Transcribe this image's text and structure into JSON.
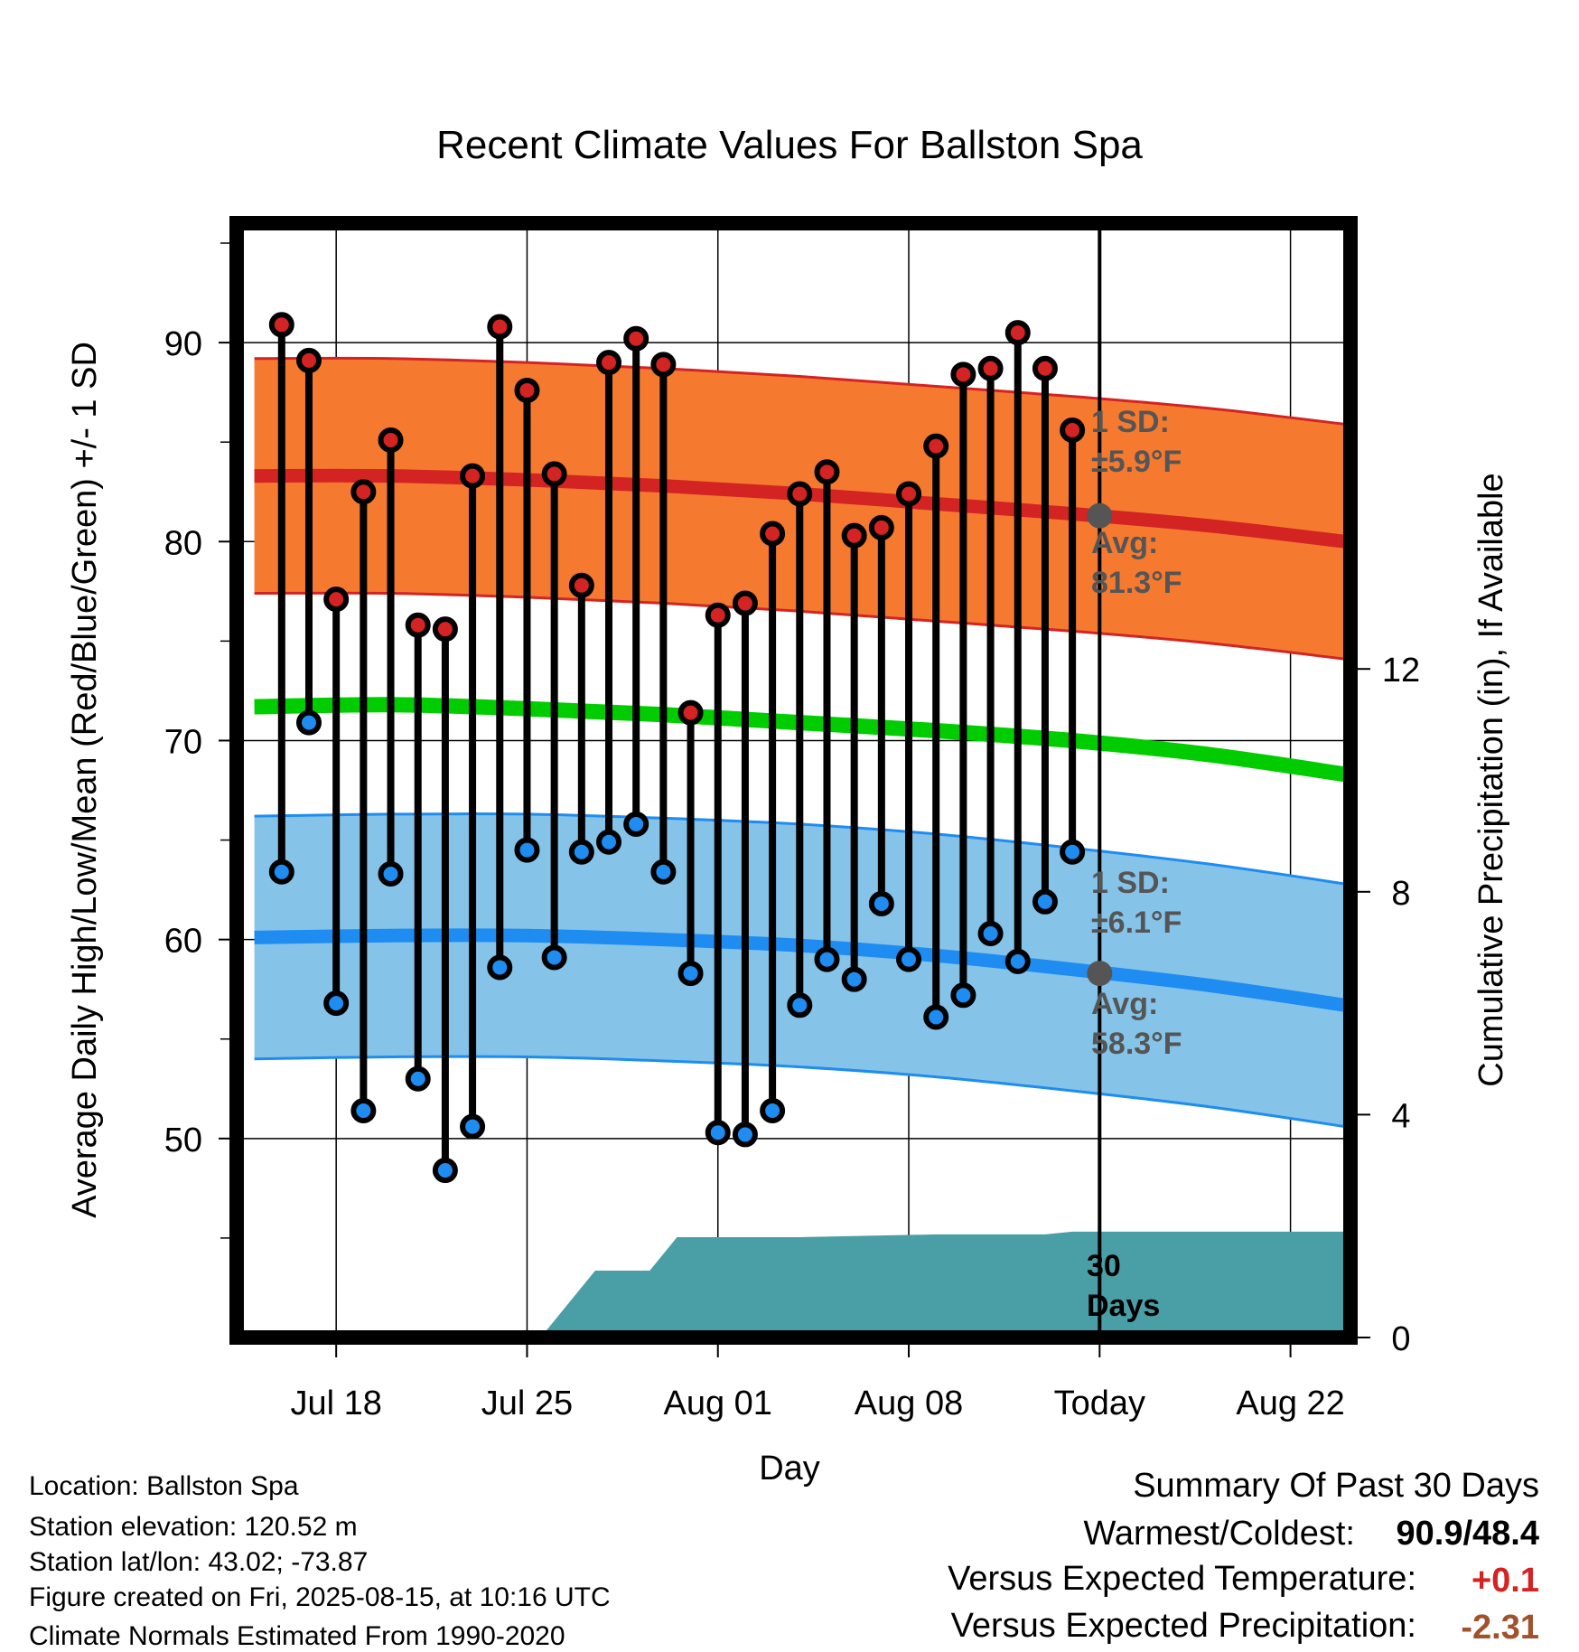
{
  "chart_data": {
    "type": "line",
    "title": "Recent Climate Values For Ballston Spa",
    "xlabel": "Day",
    "ylabel": "Average Daily High/Low/Mean (Red/Blue/Green) +/- 1 SD",
    "y2label": "Cumulative Precipitation (in), If Available",
    "ylim": [
      40,
      96
    ],
    "y2lim": [
      0,
      20
    ],
    "xlim": [
      -0.65,
      40.2
    ],
    "grid": true,
    "y_ticks": [
      "50",
      "60",
      "70",
      "80",
      "90"
    ],
    "y2_ticks": [
      "0",
      "4",
      "8",
      "12"
    ],
    "x_ticks": [
      {
        "day": 3,
        "label": "Jul 18"
      },
      {
        "day": 10,
        "label": "Jul 25"
      },
      {
        "day": 17,
        "label": "Aug 01"
      },
      {
        "day": 24,
        "label": "Aug 08"
      },
      {
        "day": 31,
        "label": "Today"
      },
      {
        "day": 38,
        "label": "Aug 22"
      }
    ],
    "days": [
      1,
      2,
      3,
      4,
      5,
      6,
      7,
      8,
      9,
      10,
      11,
      12,
      13,
      14,
      15,
      16,
      17,
      18,
      19,
      20,
      21,
      22,
      23,
      24,
      25,
      26,
      27,
      28,
      29,
      30
    ],
    "series": [
      {
        "name": "High",
        "values": [
          90.9,
          89.1,
          77.1,
          82.5,
          85.1,
          75.8,
          75.6,
          83.3,
          90.8,
          87.6,
          83.4,
          77.8,
          89.0,
          90.2,
          88.9,
          71.4,
          76.3,
          76.9,
          80.4,
          82.4,
          83.5,
          80.3,
          80.7,
          82.4,
          84.8,
          88.4,
          88.7,
          90.5,
          88.7,
          85.6
        ]
      },
      {
        "name": "Low",
        "values": [
          63.4,
          70.9,
          56.8,
          51.4,
          63.3,
          53.0,
          48.4,
          50.6,
          58.6,
          64.5,
          59.1,
          64.4,
          64.9,
          65.8,
          63.4,
          58.3,
          50.3,
          50.2,
          51.4,
          56.7,
          59.0,
          58.0,
          61.8,
          59.0,
          56.1,
          57.2,
          60.3,
          58.9,
          61.9,
          64.4
        ]
      }
    ],
    "normals": {
      "days": [
        0,
        5,
        10,
        15,
        20,
        25,
        30,
        35,
        40
      ],
      "high_mean": [
        83.3,
        83.3,
        83.1,
        82.8,
        82.4,
        81.9,
        81.4,
        80.8,
        80.0
      ],
      "high_sd": 5.9,
      "mean": [
        71.7,
        71.8,
        71.6,
        71.3,
        70.9,
        70.5,
        70.0,
        69.3,
        68.3
      ],
      "low_mean": [
        60.1,
        60.2,
        60.2,
        60.0,
        59.7,
        59.2,
        58.5,
        57.7,
        56.7
      ],
      "low_sd": 6.1
    },
    "today_day": 31,
    "today_high_avg": 81.3,
    "today_low_avg": 58.3,
    "precip_steps": [
      {
        "day": 10.5,
        "value": 0
      },
      {
        "day": 12.5,
        "value": 1.2
      },
      {
        "day": 14.5,
        "value": 1.2
      },
      {
        "day": 15.5,
        "value": 1.8
      },
      {
        "day": 20,
        "value": 1.8
      },
      {
        "day": 25,
        "value": 1.85
      },
      {
        "day": 29,
        "value": 1.85
      },
      {
        "day": 30,
        "value": 1.9
      },
      {
        "day": 40.2,
        "value": 1.9
      }
    ],
    "colors": {
      "high_band": "#f57a30",
      "high_line": "#d42323",
      "low_band": "#85c3e8",
      "low_line": "#1e8cf0",
      "mean_line": "#00cc00",
      "precip": "#4a9ea5",
      "high_marker": "#d42323",
      "low_marker": "#1e8cf0"
    }
  },
  "annotations": {
    "high_sd_label": "1 SD:",
    "high_sd_value": "±5.9°F",
    "high_avg_label": "Avg:",
    "high_avg_value": "81.3°F",
    "low_sd_label": "1 SD:",
    "low_sd_value": "±6.1°F",
    "low_avg_label": "Avg:",
    "low_avg_value": "58.3°F",
    "precip_days_1": "30",
    "precip_days_2": "Days"
  },
  "info": {
    "location": "Location: Ballston Spa",
    "elevation": "Station elevation: 120.52 m",
    "latlon": "Station lat/lon: 43.02; -73.87",
    "created": "Figure created on Fri, 2025-08-15, at 10:16 UTC",
    "normals": "Climate Normals Estimated From 1990-2020"
  },
  "summary": {
    "title": "Summary Of Past 30 Days",
    "warm_cold_label": "Warmest/Coldest:",
    "warm_cold_value": "90.9/48.4",
    "temp_label": "Versus Expected Temperature:",
    "temp_value": "+0.1",
    "temp_color": "#d42323",
    "precip_label": "Versus Expected Precipitation:",
    "precip_value": "-2.31",
    "precip_color": "#a0522d"
  }
}
